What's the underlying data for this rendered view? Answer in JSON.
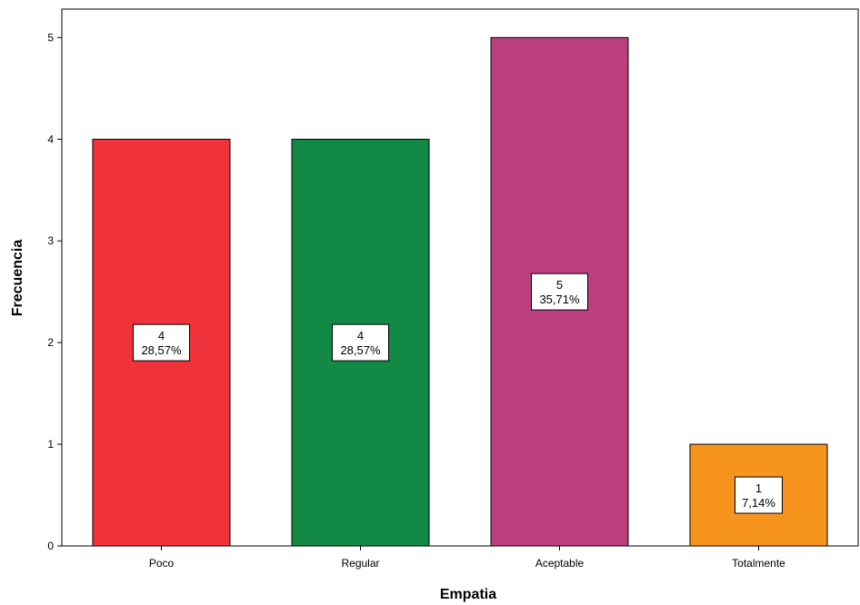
{
  "chart_data": {
    "type": "bar",
    "title": "",
    "xlabel": "Empatia",
    "ylabel": "Frecuencia",
    "categories": [
      "Poco",
      "Regular",
      "Aceptable",
      "Totalmente"
    ],
    "values": [
      4,
      4,
      5,
      1
    ],
    "percent_labels": [
      "28,57%",
      "28,57%",
      "35,71%",
      "7,14%"
    ],
    "colors": [
      "#f0333a",
      "#128a45",
      "#bc3f7e",
      "#f7941d"
    ],
    "yticks": [
      0,
      1,
      2,
      3,
      4,
      5
    ],
    "ylim": [
      0,
      5.28
    ],
    "grid": false,
    "legend": "none"
  }
}
